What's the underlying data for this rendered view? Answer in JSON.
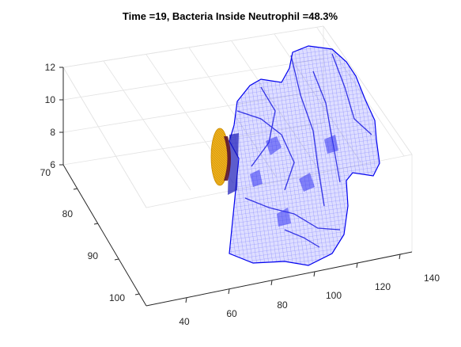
{
  "figure": {
    "title": "Time =19, Bacteria Inside Neutrophil  =48.3%"
  },
  "chart_data": {
    "type": "3d-surface",
    "title": "Time =19, Bacteria Inside Neutrophil  =48.3%",
    "xlabel": "",
    "ylabel": "",
    "zlabel": "",
    "x_axis": {
      "ticks": [
        40,
        60,
        80,
        100,
        120,
        140
      ],
      "tick_labels": [
        "40",
        "60",
        "80",
        "100",
        "120",
        "140"
      ],
      "lim": [
        30,
        140
      ]
    },
    "y_axis": {
      "ticks": [
        70,
        80,
        90,
        100
      ],
      "tick_labels": [
        "70",
        "80",
        "90",
        "100"
      ],
      "lim": [
        70,
        105
      ]
    },
    "z_axis": {
      "ticks": [
        6,
        8,
        10,
        12
      ],
      "tick_labels": [
        "6",
        "8",
        "10",
        "12"
      ],
      "lim": [
        6,
        12
      ]
    },
    "grid": true,
    "series": [
      {
        "kind": "wireframe-isosurface",
        "color": "#0000ff"
      },
      {
        "kind": "isosurface",
        "color": "#edb120"
      }
    ]
  }
}
